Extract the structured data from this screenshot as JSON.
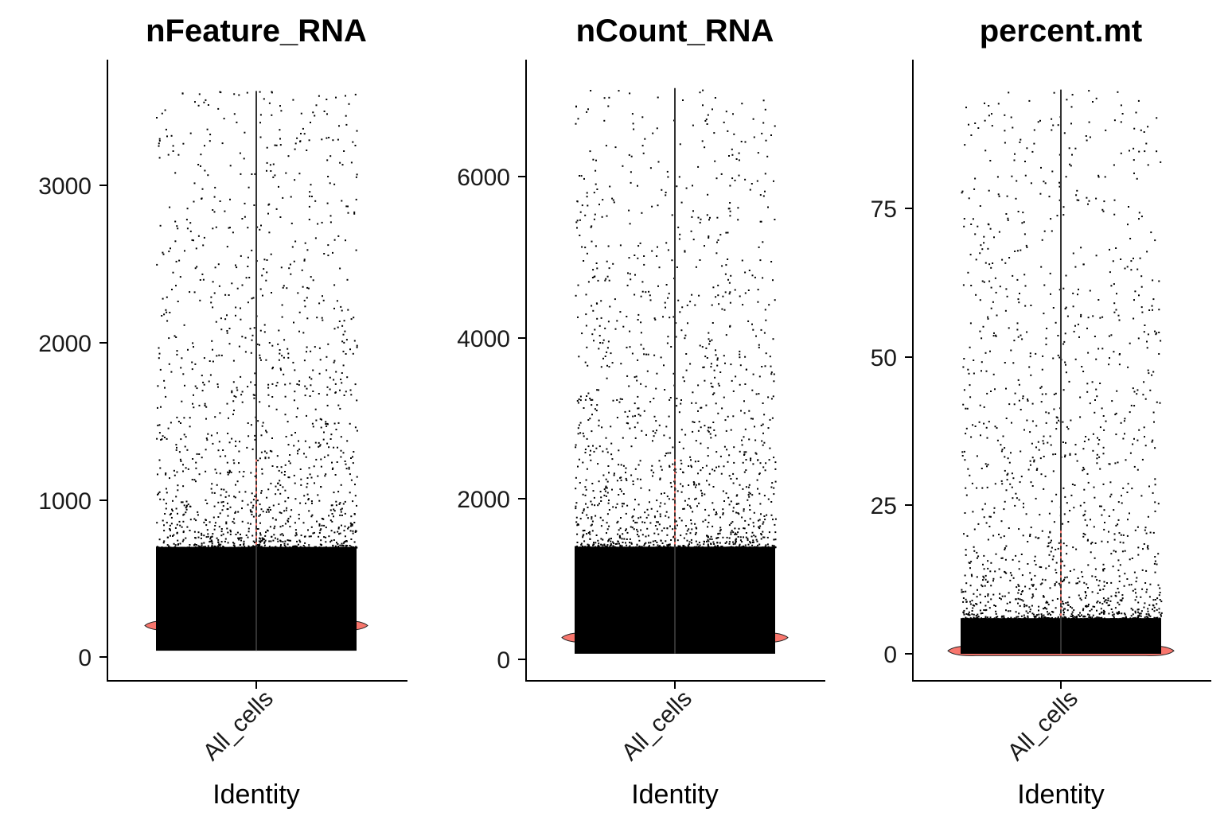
{
  "chart_data": [
    {
      "type": "violin",
      "title": "nFeature_RNA",
      "xlabel": "Identity",
      "ylabel": "",
      "categories": [
        "All_cells"
      ],
      "ylim": [
        -150,
        3800
      ],
      "yticks": [
        0,
        1000,
        2000,
        3000
      ],
      "tick_labels": [
        "0",
        "1000",
        "2000",
        "3000"
      ],
      "violin_color": "#F8766D",
      "point_color": "#000000",
      "summary": {
        "min": 40,
        "max": 3600,
        "mode": 200,
        "dense_upper": 700
      },
      "grid": false,
      "legend": "none"
    },
    {
      "type": "violin",
      "title": "nCount_RNA",
      "xlabel": "Identity",
      "ylabel": "",
      "categories": [
        "All_cells"
      ],
      "ylim": [
        -250,
        7300
      ],
      "yticks": [
        0,
        2000,
        4000,
        6000
      ],
      "tick_labels": [
        "0",
        "2000",
        "4000",
        "6000"
      ],
      "violin_color": "#F8766D",
      "point_color": "#000000",
      "summary": {
        "min": 70,
        "max": 7100,
        "mode": 270,
        "dense_upper": 1400
      },
      "grid": false,
      "legend": "none"
    },
    {
      "type": "violin",
      "title": "percent.mt",
      "xlabel": "Identity",
      "ylabel": "",
      "categories": [
        "All_cells"
      ],
      "ylim": [
        -4.5,
        98
      ],
      "yticks": [
        0,
        25,
        50,
        75
      ],
      "tick_labels": [
        "0",
        "25",
        "50",
        "75"
      ],
      "violin_color": "#F8766D",
      "point_color": "#000000",
      "summary": {
        "min": 0,
        "max": 95,
        "mode": 0.5,
        "dense_upper": 6
      },
      "grid": false,
      "legend": "none"
    }
  ]
}
